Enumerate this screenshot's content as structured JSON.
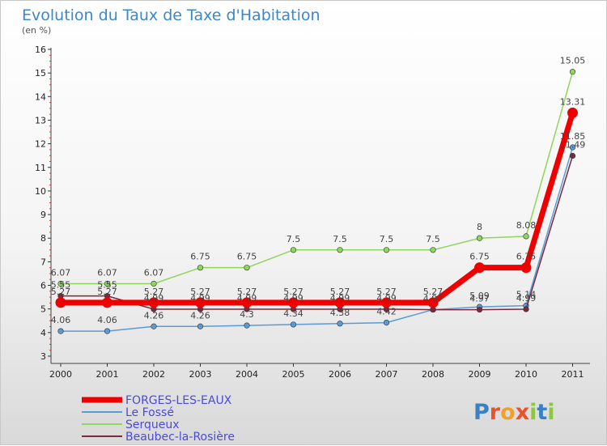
{
  "chart_data": {
    "type": "line",
    "title": "Evolution du Taux de Taxe d'Habitation",
    "subtitle": "(en %)",
    "xlabel": "",
    "ylabel": "",
    "ylim": [
      3,
      16
    ],
    "yticks": [
      "3",
      "4",
      "5",
      "6",
      "7",
      "8",
      "9",
      "10",
      "11",
      "12",
      "13",
      "14",
      "15",
      "16"
    ],
    "categories": [
      "2000",
      "2001",
      "2002",
      "2003",
      "2004",
      "2005",
      "2006",
      "2007",
      "2008",
      "2009",
      "2010",
      "2011"
    ],
    "series": [
      {
        "name": "FORGES-LES-EAUX",
        "color": "#ee0000",
        "values": [
          5.27,
          5.27,
          5.27,
          5.27,
          5.27,
          5.27,
          5.27,
          5.27,
          5.27,
          6.75,
          6.75,
          13.31
        ],
        "labels": [
          "5.27",
          "5.27",
          "5.27",
          "5.27",
          "5.27",
          "5.27",
          "5.27",
          "5.27",
          "5.27",
          "6.75",
          "6.75",
          "13.31"
        ]
      },
      {
        "name": "Le Fossé",
        "color": "#5b9bd5",
        "values": [
          4.06,
          4.06,
          4.26,
          4.26,
          4.3,
          4.34,
          4.38,
          4.42,
          4.97,
          5.09,
          5.14,
          11.85
        ],
        "labels": [
          "4.06",
          "4.06",
          "4.26",
          "4.26",
          "4.3",
          "4.34",
          "4.38",
          "4.42",
          "",
          "5.09",
          "5.14",
          "11.85"
        ]
      },
      {
        "name": "Serqueux",
        "color": "#8fd65c",
        "values": [
          6.07,
          6.07,
          6.07,
          6.75,
          6.75,
          7.5,
          7.5,
          7.5,
          7.5,
          8,
          8.08,
          15.05
        ],
        "labels": [
          "6.07",
          "6.07",
          "6.07",
          "6.75",
          "6.75",
          "7.5",
          "7.5",
          "7.5",
          "7.5",
          "8",
          "8.08",
          "15.05"
        ]
      },
      {
        "name": "Beaubec-la-Rosière",
        "color": "#7a2a3a",
        "values": [
          5.55,
          5.55,
          4.99,
          4.99,
          4.99,
          4.99,
          4.99,
          4.99,
          4.97,
          4.97,
          4.99,
          11.49
        ],
        "labels": [
          "5.55",
          "5.55",
          "4.99",
          "4.99",
          "4.99",
          "4.99",
          "4.99",
          "4.99",
          "4.97",
          "4.97",
          "4.99",
          "11.49"
        ]
      }
    ],
    "legend_position": "bottom-left",
    "grid": false
  },
  "logo": {
    "text": "Proxiti"
  }
}
